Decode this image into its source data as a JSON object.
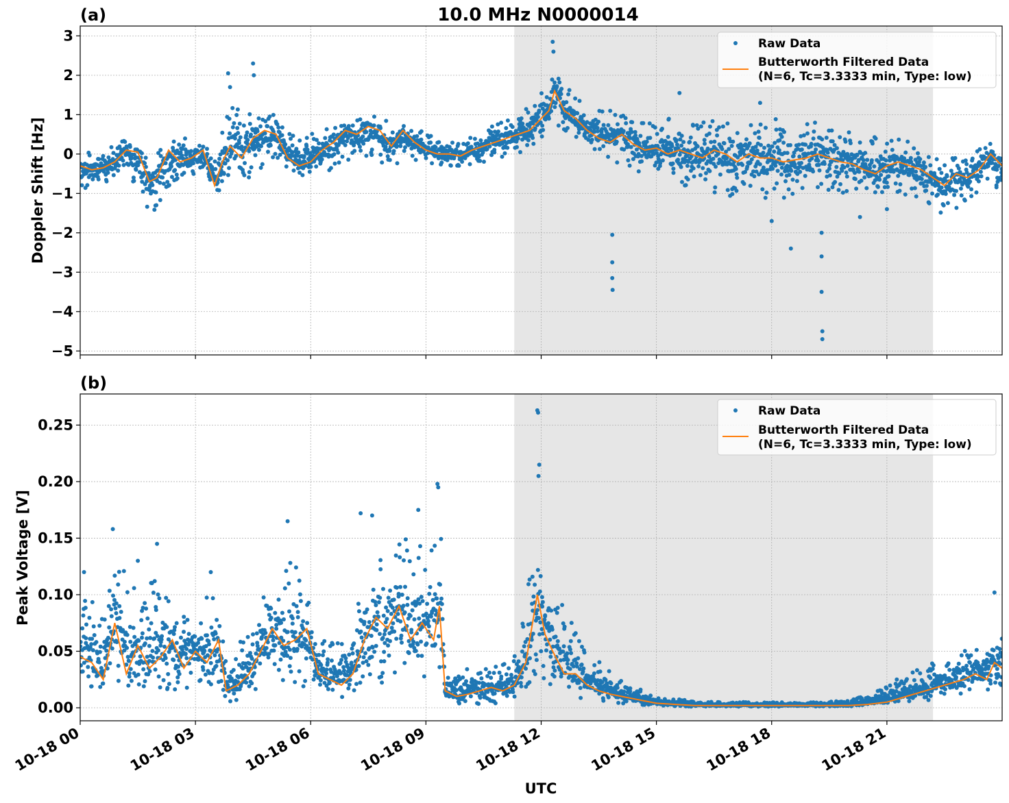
{
  "figure": {
    "title": "10.0 MHz N0000014",
    "xlabel": "UTC",
    "xtick_labels": [
      "10-18 00",
      "10-18 03",
      "10-18 06",
      "10-18 09",
      "10-18 12",
      "10-18 15",
      "10-18 18",
      "10-18 21"
    ],
    "legend": {
      "raw": "Raw Data",
      "filtered_line1": "Butterworth Filtered Data",
      "filtered_line2": "(N=6, Tc=3.3333 min, Type: low)"
    },
    "colors": {
      "raw": "#1f77b4",
      "filtered": "#ff7f0e",
      "shade": "#e6e6e6",
      "grid": "#b0b0b0"
    }
  },
  "chart_data": [
    {
      "type": "scatter",
      "panel_label": "(a)",
      "title": "10.0 MHz N0000014",
      "xlabel": "",
      "ylabel": "Doppler Shift [Hz]",
      "x_unit": "hours UTC, 10-18",
      "xlim": [
        0,
        24
      ],
      "ylim": [
        -5.1,
        3.25
      ],
      "yticks": [
        3,
        2,
        1,
        0,
        -1,
        -2,
        -3,
        -4,
        -5
      ],
      "ytick_labels": [
        "3",
        "2",
        "1",
        "0",
        "−1",
        "−2",
        "−3",
        "−4",
        "−5"
      ],
      "grid": true,
      "legend_position": "upper right",
      "shaded_interval_hours": [
        11.3,
        22.2
      ],
      "series": [
        {
          "name": "Butterworth Filtered Data\n(N=6, Tc=3.3333 min, Type: low)",
          "kind": "line",
          "x": [
            0,
            0.3,
            0.6,
            0.9,
            1.2,
            1.5,
            1.8,
            2.0,
            2.3,
            2.6,
            2.9,
            3.2,
            3.5,
            3.7,
            3.9,
            4.2,
            4.5,
            4.8,
            5.1,
            5.4,
            5.7,
            6.0,
            6.3,
            6.6,
            6.9,
            7.2,
            7.5,
            7.8,
            8.1,
            8.4,
            8.7,
            9.0,
            9.3,
            9.6,
            9.9,
            10.2,
            10.5,
            10.8,
            11.1,
            11.4,
            11.7,
            12.0,
            12.2,
            12.35,
            12.6,
            12.9,
            13.2,
            13.5,
            13.8,
            14.1,
            14.4,
            14.7,
            15.0,
            15.3,
            15.6,
            15.9,
            16.2,
            16.5,
            16.8,
            17.1,
            17.4,
            17.7,
            18.0,
            18.3,
            18.6,
            18.9,
            19.2,
            19.5,
            19.8,
            20.1,
            20.4,
            20.7,
            21.0,
            21.3,
            21.6,
            21.9,
            22.2,
            22.5,
            22.8,
            23.1,
            23.4,
            23.7,
            24.0
          ],
          "y": [
            -0.3,
            -0.4,
            -0.35,
            -0.2,
            0.1,
            0.05,
            -0.7,
            -0.6,
            0.1,
            -0.2,
            -0.1,
            0.1,
            -0.8,
            -0.2,
            0.2,
            -0.1,
            0.4,
            0.6,
            0.5,
            -0.1,
            -0.3,
            -0.2,
            0.1,
            0.3,
            0.6,
            0.5,
            0.7,
            0.6,
            0.2,
            0.6,
            0.3,
            0.1,
            0.0,
            0.0,
            -0.05,
            0.1,
            0.2,
            0.3,
            0.4,
            0.5,
            0.6,
            0.9,
            1.1,
            1.6,
            1.1,
            0.9,
            0.6,
            0.4,
            0.3,
            0.5,
            0.25,
            0.1,
            0.15,
            0.0,
            0.1,
            0.0,
            -0.1,
            0.1,
            0.0,
            -0.2,
            0.0,
            -0.1,
            -0.1,
            -0.2,
            -0.15,
            -0.1,
            0.0,
            -0.1,
            -0.2,
            -0.25,
            -0.4,
            -0.5,
            -0.3,
            -0.2,
            -0.3,
            -0.4,
            -0.6,
            -0.8,
            -0.5,
            -0.6,
            -0.4,
            0.0,
            -0.3
          ]
        },
        {
          "name": "Raw Data",
          "kind": "scatter",
          "envelope_x": [
            0,
            0.6,
            1.2,
            1.8,
            2.0,
            2.6,
            3.2,
            3.5,
            3.9,
            4.5,
            5.1,
            5.7,
            6.3,
            6.9,
            7.5,
            8.1,
            8.7,
            9.3,
            9.9,
            10.5,
            11.1,
            11.7,
            12.2,
            12.35,
            12.9,
            13.5,
            14.1,
            14.7,
            15.3,
            15.9,
            16.5,
            17.1,
            17.7,
            18.3,
            18.9,
            19.5,
            20.1,
            20.7,
            21.3,
            21.9,
            22.5,
            23.1,
            23.7,
            24.0
          ],
          "envelope_low": [
            -0.9,
            -0.8,
            -0.4,
            -1.6,
            -1.4,
            -0.6,
            -0.5,
            -1.1,
            -0.6,
            -0.6,
            -0.1,
            -0.6,
            -0.6,
            -0.2,
            -0.1,
            -0.3,
            -0.2,
            -0.3,
            -0.3,
            -0.2,
            -0.1,
            0.1,
            0.6,
            0.8,
            0.3,
            0.0,
            -0.3,
            -0.5,
            -0.6,
            -0.9,
            -1.0,
            -1.1,
            -1.2,
            -1.2,
            -1.1,
            -1.0,
            -1.0,
            -1.0,
            -1.0,
            -1.2,
            -1.6,
            -1.2,
            -0.8,
            -1.0
          ],
          "envelope_high": [
            0.0,
            0.1,
            0.4,
            0.0,
            0.2,
            0.4,
            0.4,
            0.0,
            1.2,
            1.0,
            1.0,
            0.5,
            0.6,
            0.9,
            1.0,
            0.8,
            0.7,
            0.4,
            0.3,
            0.6,
            0.9,
            1.2,
            1.8,
            2.3,
            1.4,
            1.2,
            1.0,
            0.8,
            0.9,
            0.8,
            0.9,
            0.8,
            0.9,
            0.9,
            0.9,
            0.8,
            0.6,
            0.5,
            0.4,
            0.2,
            -0.1,
            0.0,
            0.4,
            0.0
          ],
          "outliers_x": [
            3.85,
            3.9,
            4.5,
            4.52,
            12.3,
            12.32,
            13.85,
            13.85,
            13.85,
            13.86,
            15.6,
            17.7,
            18.0,
            18.5,
            19.3,
            19.3,
            19.3,
            19.32,
            19.32,
            20.3,
            21.0
          ],
          "outliers_y": [
            2.05,
            1.7,
            2.3,
            2.0,
            2.85,
            2.6,
            -2.05,
            -2.75,
            -3.15,
            -3.45,
            1.55,
            1.3,
            -1.7,
            -2.4,
            -2.0,
            -2.6,
            -3.5,
            -4.5,
            -4.7,
            -1.6,
            -1.4
          ]
        }
      ]
    },
    {
      "type": "scatter",
      "panel_label": "(b)",
      "title": "",
      "xlabel": "UTC",
      "ylabel": "Peak Voltage [V]",
      "x_unit": "hours UTC, 10-18",
      "xlim": [
        0,
        24
      ],
      "ylim": [
        -0.0115,
        0.2775
      ],
      "yticks": [
        0.25,
        0.2,
        0.15,
        0.1,
        0.05,
        0.0
      ],
      "ytick_labels": [
        "0.25",
        "0.20",
        "0.15",
        "0.10",
        "0.05",
        "0.00"
      ],
      "grid": true,
      "legend_position": "upper right",
      "shaded_interval_hours": [
        11.3,
        22.2
      ],
      "series": [
        {
          "name": "Butterworth Filtered Data\n(N=6, Tc=3.3333 min, Type: low)",
          "kind": "line",
          "x": [
            0,
            0.3,
            0.6,
            0.9,
            1.2,
            1.5,
            1.8,
            2.1,
            2.4,
            2.7,
            3.0,
            3.3,
            3.6,
            3.8,
            4.1,
            4.4,
            4.7,
            5.0,
            5.3,
            5.6,
            5.9,
            6.2,
            6.5,
            6.8,
            7.1,
            7.4,
            7.7,
            8.0,
            8.3,
            8.6,
            8.9,
            9.2,
            9.35,
            9.5,
            9.8,
            10.1,
            10.4,
            10.7,
            11.0,
            11.3,
            11.6,
            11.9,
            12.1,
            12.3,
            12.6,
            12.9,
            13.2,
            13.5,
            13.8,
            14.1,
            14.4,
            14.7,
            15.0,
            15.5,
            16.0,
            17.0,
            18.0,
            19.0,
            20.0,
            20.5,
            21.0,
            21.5,
            22.0,
            22.5,
            23.0,
            23.3,
            23.6,
            23.8,
            24.0
          ],
          "y": [
            0.045,
            0.04,
            0.025,
            0.075,
            0.03,
            0.055,
            0.035,
            0.045,
            0.06,
            0.035,
            0.05,
            0.04,
            0.06,
            0.015,
            0.02,
            0.03,
            0.05,
            0.07,
            0.055,
            0.06,
            0.07,
            0.03,
            0.025,
            0.02,
            0.03,
            0.06,
            0.08,
            0.07,
            0.09,
            0.06,
            0.075,
            0.06,
            0.09,
            0.015,
            0.01,
            0.012,
            0.015,
            0.018,
            0.015,
            0.02,
            0.04,
            0.1,
            0.065,
            0.05,
            0.03,
            0.03,
            0.02,
            0.015,
            0.012,
            0.01,
            0.008,
            0.006,
            0.004,
            0.003,
            0.002,
            0.002,
            0.002,
            0.002,
            0.002,
            0.003,
            0.005,
            0.01,
            0.015,
            0.02,
            0.025,
            0.03,
            0.025,
            0.04,
            0.035
          ]
        },
        {
          "name": "Raw Data",
          "kind": "scatter",
          "envelope_x": [
            0,
            0.6,
            0.9,
            1.5,
            2.1,
            2.7,
            3.3,
            3.6,
            3.8,
            4.4,
            5.0,
            5.6,
            6.2,
            6.8,
            7.4,
            8.0,
            8.6,
            9.2,
            9.4,
            9.5,
            10.1,
            10.7,
            11.3,
            11.9,
            12.2,
            12.6,
            13.2,
            13.8,
            14.4,
            15.0,
            16.0,
            17.0,
            18.0,
            19.0,
            20.0,
            20.5,
            21.0,
            21.5,
            22.0,
            22.5,
            23.0,
            23.5,
            24.0
          ],
          "envelope_low": [
            0.015,
            0.012,
            0.02,
            0.015,
            0.015,
            0.012,
            0.015,
            0.02,
            0.005,
            0.008,
            0.015,
            0.02,
            0.01,
            0.008,
            0.015,
            0.02,
            0.02,
            0.02,
            0.04,
            0.005,
            0.003,
            0.004,
            0.004,
            0.03,
            0.02,
            0.01,
            0.008,
            0.005,
            0.003,
            0.002,
            0.001,
            0.001,
            0.001,
            0.001,
            0.001,
            0.002,
            0.003,
            0.005,
            0.006,
            0.008,
            0.01,
            0.012,
            0.012
          ],
          "envelope_high": [
            0.1,
            0.09,
            0.14,
            0.1,
            0.12,
            0.09,
            0.1,
            0.1,
            0.04,
            0.07,
            0.12,
            0.14,
            0.06,
            0.06,
            0.12,
            0.15,
            0.15,
            0.14,
            0.18,
            0.03,
            0.035,
            0.035,
            0.045,
            0.15,
            0.11,
            0.09,
            0.05,
            0.035,
            0.02,
            0.01,
            0.006,
            0.005,
            0.005,
            0.005,
            0.006,
            0.012,
            0.02,
            0.03,
            0.04,
            0.045,
            0.05,
            0.06,
            0.08
          ],
          "outliers_x": [
            0.1,
            0.85,
            1.5,
            2.0,
            3.4,
            5.4,
            7.3,
            7.6,
            8.8,
            9.3,
            9.32,
            11.9,
            11.92,
            11.95,
            11.93,
            23.8
          ],
          "outliers_y": [
            0.12,
            0.158,
            0.13,
            0.145,
            0.12,
            0.165,
            0.172,
            0.17,
            0.175,
            0.198,
            0.195,
            0.263,
            0.261,
            0.215,
            0.205,
            0.102
          ]
        }
      ]
    }
  ]
}
